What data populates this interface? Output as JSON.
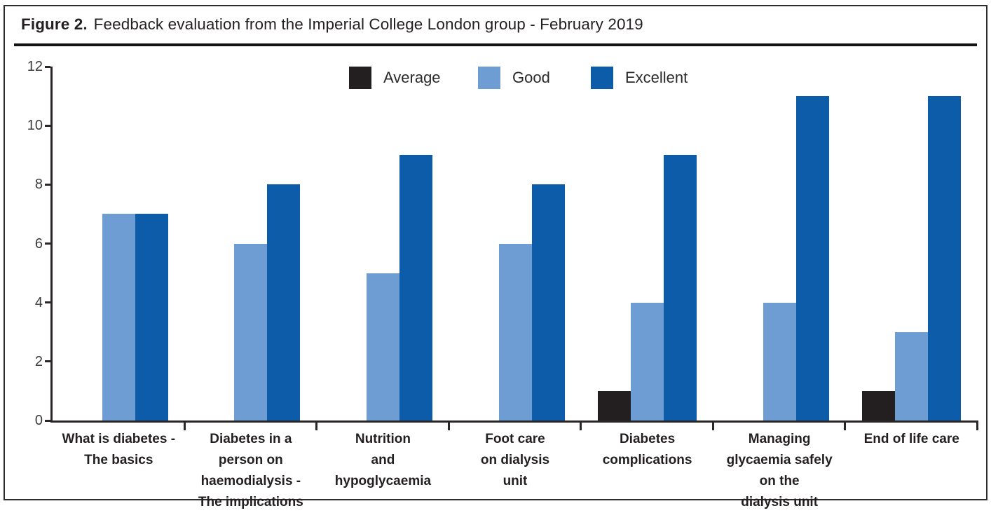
{
  "figure": {
    "label": "Figure 2.",
    "title": "Feedback evaluation from the Imperial College London group - February 2019"
  },
  "chart_data": {
    "type": "bar",
    "title": "Feedback evaluation from the Imperial College London group - February 2019",
    "categories": [
      "What is diabetes -\nThe basics",
      "Diabetes in a\nperson on\nhaemodialysis -\nThe implications",
      "Nutrition\nand\nhypoglycaemia",
      "Foot care\non dialysis\nunit",
      "Diabetes\ncomplications",
      "Managing\nglycaemia safely\non the\ndialysis unit",
      "End of life care"
    ],
    "series": [
      {
        "name": "Average",
        "color": "#231f20",
        "values": [
          0,
          0,
          0,
          0,
          1,
          0,
          1
        ]
      },
      {
        "name": "Good",
        "color": "#6e9dd3",
        "values": [
          7,
          6,
          5,
          6,
          4,
          4,
          3
        ]
      },
      {
        "name": "Excellent",
        "color": "#0d5ca9",
        "values": [
          7,
          8,
          9,
          8,
          9,
          11,
          11
        ]
      }
    ],
    "xlabel": "",
    "ylabel": "",
    "ylim": [
      0,
      12
    ],
    "yticks": [
      0,
      2,
      4,
      6,
      8,
      10,
      12
    ],
    "grid": false,
    "legend_position": "top-center",
    "legend": [
      "Average",
      "Good",
      "Excellent"
    ]
  },
  "colors": {
    "axis": "#2b2728",
    "title_text": "#231f20",
    "tick_label": "#3c3a3b",
    "average": "#231f20",
    "good": "#6e9dd3",
    "excellent": "#0d5ca9"
  }
}
